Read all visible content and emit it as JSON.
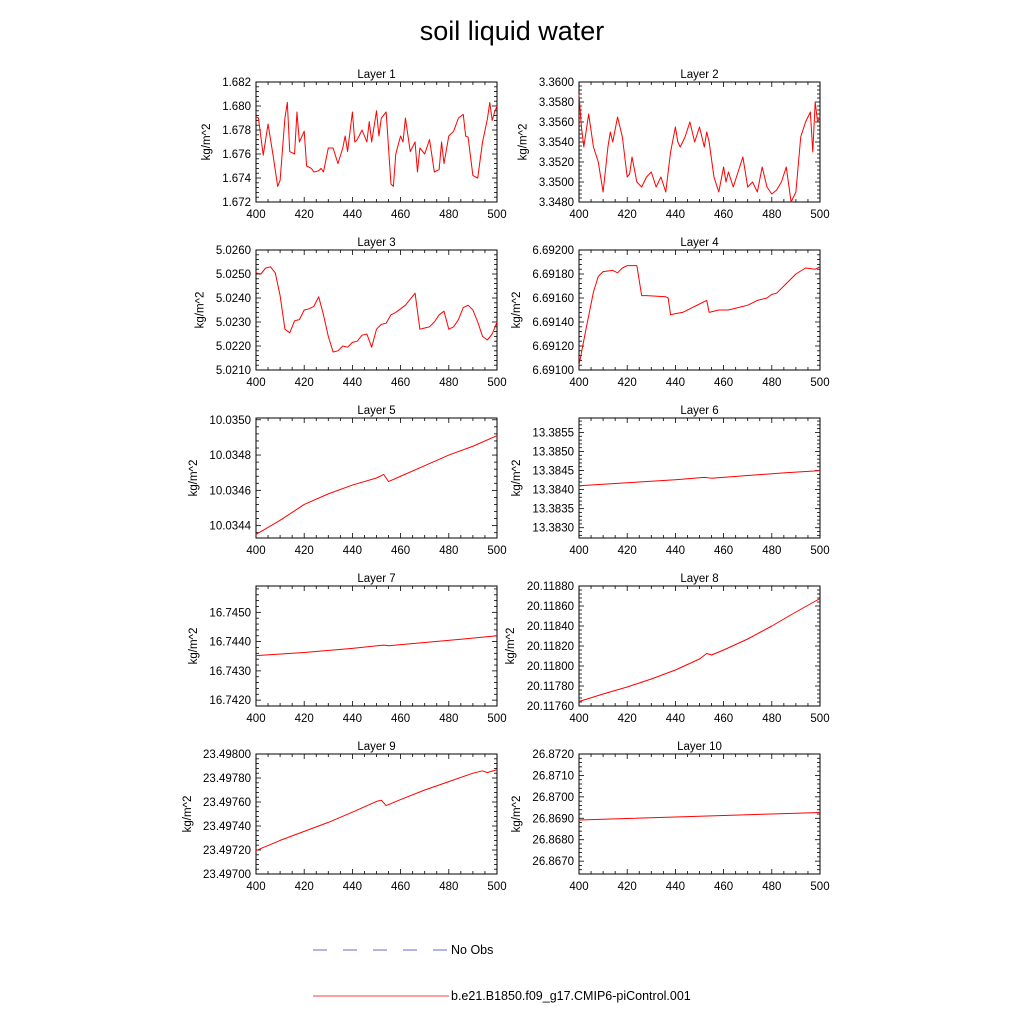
{
  "title": "soil liquid water",
  "colors": {
    "model": "#ff0000",
    "obs": "#3a3ab8",
    "axis": "#000000"
  },
  "legend": {
    "entries": [
      {
        "label": "No Obs",
        "style": "dashed",
        "color": "#3a3ab8"
      },
      {
        "label": "b.e21.B1850.f09_g17.CMIP6-piControl.001",
        "style": "solid",
        "color": "#ff0000"
      }
    ]
  },
  "chart_data": [
    {
      "type": "line",
      "title": "Layer 1",
      "ylabel": "kg/m^2",
      "xlim": [
        400,
        500
      ],
      "ylim": [
        1.672,
        1.682
      ],
      "xticks": [
        "400",
        "420",
        "440",
        "460",
        "480",
        "500"
      ],
      "yticks": [
        "1.672",
        "1.674",
        "1.676",
        "1.678",
        "1.680",
        "1.682"
      ],
      "series": [
        {
          "x": [
            400,
            401,
            403,
            405,
            407,
            409,
            410,
            412,
            413,
            414,
            416,
            417,
            418,
            420,
            421,
            423,
            424,
            426,
            427,
            428,
            430,
            432,
            434,
            436,
            437,
            438,
            440,
            441,
            442,
            444,
            446,
            447,
            448,
            450,
            451,
            452,
            454,
            456,
            457,
            458,
            460,
            461,
            462,
            464,
            466,
            467,
            468,
            470,
            472,
            474,
            476,
            477,
            478,
            480,
            482,
            484,
            486,
            487,
            488,
            490,
            492,
            494,
            496,
            497,
            498,
            499,
            500
          ],
          "values": [
            1.6791,
            1.679,
            1.6759,
            1.6785,
            1.676,
            1.6733,
            1.6738,
            1.679,
            1.6803,
            1.6762,
            1.676,
            1.6795,
            1.677,
            1.6779,
            1.675,
            1.6748,
            1.6745,
            1.6746,
            1.6748,
            1.6745,
            1.6765,
            1.6765,
            1.6752,
            1.6765,
            1.6775,
            1.6762,
            1.6795,
            1.677,
            1.6772,
            1.678,
            1.677,
            1.6787,
            1.677,
            1.6796,
            1.6775,
            1.679,
            1.6795,
            1.6735,
            1.6733,
            1.676,
            1.6775,
            1.677,
            1.679,
            1.6762,
            1.677,
            1.6745,
            1.6765,
            1.676,
            1.6772,
            1.6745,
            1.6747,
            1.677,
            1.6752,
            1.6775,
            1.6779,
            1.679,
            1.6793,
            1.6775,
            1.6774,
            1.6742,
            1.674,
            1.677,
            1.6789,
            1.6803,
            1.6788,
            1.6795,
            1.68
          ]
        }
      ]
    },
    {
      "type": "line",
      "title": "Layer 2",
      "ylabel": "kg/m^2",
      "xlim": [
        400,
        500
      ],
      "ylim": [
        3.348,
        3.36
      ],
      "xticks": [
        "400",
        "420",
        "440",
        "460",
        "480",
        "500"
      ],
      "yticks": [
        "3.3480",
        "3.3500",
        "3.3520",
        "3.3540",
        "3.3560",
        "3.3580",
        "3.3600"
      ],
      "series": [
        {
          "x": [
            400,
            401,
            402,
            404,
            406,
            408,
            410,
            412,
            413,
            414,
            416,
            418,
            420,
            421,
            422,
            424,
            426,
            428,
            430,
            432,
            434,
            436,
            438,
            440,
            441,
            442,
            444,
            446,
            448,
            450,
            452,
            453,
            454,
            456,
            458,
            460,
            461,
            462,
            464,
            466,
            468,
            470,
            472,
            474,
            476,
            478,
            480,
            482,
            484,
            486,
            488,
            490,
            492,
            494,
            496,
            497,
            498,
            499,
            500
          ],
          "values": [
            3.3588,
            3.3555,
            3.3535,
            3.3568,
            3.3535,
            3.352,
            3.349,
            3.3535,
            3.355,
            3.354,
            3.3565,
            3.3545,
            3.3505,
            3.3508,
            3.3525,
            3.35,
            3.3495,
            3.3505,
            3.351,
            3.3495,
            3.3505,
            3.349,
            3.353,
            3.3555,
            3.354,
            3.3535,
            3.3545,
            3.356,
            3.354,
            3.3555,
            3.3535,
            3.355,
            3.354,
            3.3505,
            3.349,
            3.3515,
            3.35,
            3.351,
            3.3495,
            3.351,
            3.3525,
            3.3495,
            3.35,
            3.349,
            3.3515,
            3.3495,
            3.3488,
            3.3492,
            3.35,
            3.3515,
            3.348,
            3.349,
            3.3545,
            3.356,
            3.357,
            3.353,
            3.358,
            3.356,
            3.3565
          ]
        }
      ]
    },
    {
      "type": "line",
      "title": "Layer 3",
      "ylabel": "kg/m^2",
      "xlim": [
        400,
        500
      ],
      "ylim": [
        5.021,
        5.026
      ],
      "xticks": [
        "400",
        "420",
        "440",
        "460",
        "480",
        "500"
      ],
      "yticks": [
        "5.0210",
        "5.0220",
        "5.0230",
        "5.0240",
        "5.0250",
        "5.0260"
      ],
      "series": [
        {
          "x": [
            400,
            402,
            404,
            406,
            408,
            410,
            412,
            414,
            416,
            418,
            420,
            422,
            424,
            426,
            428,
            430,
            432,
            434,
            436,
            438,
            440,
            442,
            444,
            446,
            448,
            450,
            452,
            454,
            456,
            458,
            460,
            462,
            464,
            466,
            468,
            470,
            472,
            474,
            476,
            478,
            480,
            482,
            484,
            486,
            488,
            490,
            492,
            494,
            496,
            498,
            500
          ],
          "values": [
            5.02505,
            5.025,
            5.02525,
            5.0253,
            5.02505,
            5.0241,
            5.0227,
            5.02255,
            5.02305,
            5.0231,
            5.0235,
            5.02355,
            5.02365,
            5.02405,
            5.0233,
            5.0224,
            5.02175,
            5.0218,
            5.022,
            5.02195,
            5.02215,
            5.0222,
            5.02245,
            5.0225,
            5.02195,
            5.0227,
            5.0229,
            5.02295,
            5.0233,
            5.0234,
            5.02355,
            5.0237,
            5.02395,
            5.0242,
            5.0227,
            5.02275,
            5.0228,
            5.023,
            5.0233,
            5.02345,
            5.0227,
            5.0228,
            5.0231,
            5.0236,
            5.0237,
            5.0235,
            5.023,
            5.0224,
            5.02225,
            5.0225,
            5.023
          ]
        }
      ]
    },
    {
      "type": "line",
      "title": "Layer 4",
      "ylabel": "kg/m^2",
      "xlim": [
        400,
        500
      ],
      "ylim": [
        6.691,
        6.692
      ],
      "xticks": [
        "400",
        "420",
        "440",
        "460",
        "480",
        "500"
      ],
      "yticks": [
        "6.69100",
        "6.69120",
        "6.69140",
        "6.69160",
        "6.69180",
        "6.69200"
      ],
      "series": [
        {
          "x": [
            400,
            403,
            406,
            408,
            410,
            414,
            416,
            418,
            420,
            424,
            426,
            428,
            436,
            437,
            438,
            440,
            443,
            446,
            450,
            453,
            454,
            458,
            462,
            466,
            470,
            474,
            478,
            480,
            482,
            486,
            490,
            494,
            498,
            500
          ],
          "values": [
            6.69104,
            6.69135,
            6.69165,
            6.69178,
            6.69182,
            6.69183,
            6.69181,
            6.69185,
            6.69187,
            6.69187,
            6.69162,
            6.69162,
            6.69161,
            6.6916,
            6.69146,
            6.69147,
            6.69148,
            6.69151,
            6.69155,
            6.69158,
            6.69148,
            6.6915,
            6.6915,
            6.69152,
            6.69154,
            6.69158,
            6.6916,
            6.69163,
            6.69164,
            6.69172,
            6.6918,
            6.69185,
            6.69184,
            6.69186
          ]
        }
      ]
    },
    {
      "type": "line",
      "title": "Layer 5",
      "ylabel": "kg/m^2",
      "xlim": [
        400,
        500
      ],
      "ylim": [
        10.03433,
        10.03501
      ],
      "xticks": [
        "400",
        "420",
        "440",
        "460",
        "480",
        "500"
      ],
      "yticks": [
        "10.0344",
        "10.0346",
        "10.0348",
        "10.0350"
      ],
      "series": [
        {
          "x": [
            400,
            410,
            420,
            430,
            440,
            450,
            453,
            455,
            460,
            470,
            480,
            490,
            500
          ],
          "values": [
            10.03435,
            10.03443,
            10.03452,
            10.03458,
            10.03463,
            10.03467,
            10.03469,
            10.03465,
            10.03468,
            10.03474,
            10.0348,
            10.03485,
            10.03491
          ]
        }
      ]
    },
    {
      "type": "line",
      "title": "Layer 6",
      "ylabel": "kg/m^2",
      "xlim": [
        400,
        500
      ],
      "ylim": [
        13.38273,
        13.38588
      ],
      "xticks": [
        "400",
        "420",
        "440",
        "460",
        "480",
        "500"
      ],
      "yticks": [
        "13.3830",
        "13.3835",
        "13.3840",
        "13.3845",
        "13.3850",
        "13.3855"
      ],
      "series": [
        {
          "x": [
            400,
            420,
            440,
            452,
            455,
            470,
            485,
            500
          ],
          "values": [
            13.3841,
            13.38418,
            13.38426,
            13.38432,
            13.3843,
            13.38437,
            13.38444,
            13.3845
          ]
        }
      ]
    },
    {
      "type": "line",
      "title": "Layer 7",
      "ylabel": "kg/m^2",
      "xlim": [
        400,
        500
      ],
      "ylim": [
        16.7418,
        16.7459
      ],
      "xticks": [
        "400",
        "420",
        "440",
        "460",
        "480",
        "500"
      ],
      "yticks": [
        "16.7420",
        "16.7430",
        "16.7440",
        "16.7450"
      ],
      "series": [
        {
          "x": [
            400,
            420,
            440,
            453,
            455,
            470,
            485,
            500
          ],
          "values": [
            16.74352,
            16.74363,
            16.74377,
            16.74388,
            16.74386,
            16.74397,
            16.74408,
            16.7442
          ]
        }
      ]
    },
    {
      "type": "line",
      "title": "Layer 8",
      "ylabel": "kg/m^2",
      "xlim": [
        400,
        500
      ],
      "ylim": [
        20.1176,
        20.1188
      ],
      "xticks": [
        "400",
        "420",
        "440",
        "460",
        "480",
        "500"
      ],
      "yticks": [
        "20.11760",
        "20.11780",
        "20.11800",
        "20.11820",
        "20.11840",
        "20.11860",
        "20.11880"
      ],
      "series": [
        {
          "x": [
            400,
            410,
            420,
            430,
            440,
            450,
            453,
            455,
            460,
            470,
            480,
            490,
            500
          ],
          "values": [
            20.117645,
            20.11772,
            20.11779,
            20.11787,
            20.11796,
            20.11807,
            20.118125,
            20.11811,
            20.11816,
            20.11827,
            20.1184,
            20.11854,
            20.118675
          ]
        }
      ]
    },
    {
      "type": "line",
      "title": "Layer 9",
      "ylabel": "kg/m^2",
      "xlim": [
        400,
        500
      ],
      "ylim": [
        23.497,
        23.498
      ],
      "xticks": [
        "400",
        "420",
        "440",
        "460",
        "480",
        "500"
      ],
      "yticks": [
        "23.49700",
        "23.49720",
        "23.49740",
        "23.49760",
        "23.49780",
        "23.49800"
      ],
      "series": [
        {
          "x": [
            400,
            410,
            420,
            430,
            440,
            450,
            452,
            454,
            460,
            470,
            480,
            490,
            494,
            496,
            500
          ],
          "values": [
            23.497195,
            23.49728,
            23.497355,
            23.49743,
            23.497515,
            23.497605,
            23.497615,
            23.49757,
            23.49762,
            23.4977,
            23.49777,
            23.49784,
            23.49786,
            23.497845,
            23.49787
          ]
        }
      ]
    },
    {
      "type": "line",
      "title": "Layer 10",
      "ylabel": "kg/m^2",
      "xlim": [
        400,
        500
      ],
      "ylim": [
        26.8664,
        26.872
      ],
      "xticks": [
        "400",
        "420",
        "440",
        "460",
        "480",
        "500"
      ],
      "yticks": [
        "26.8670",
        "26.8680",
        "26.8690",
        "26.8700",
        "26.8710",
        "26.8720"
      ],
      "series": [
        {
          "x": [
            400,
            420,
            440,
            460,
            480,
            500
          ],
          "values": [
            26.86892,
            26.86899,
            26.86906,
            26.86913,
            26.8692,
            26.86927
          ]
        }
      ]
    }
  ]
}
